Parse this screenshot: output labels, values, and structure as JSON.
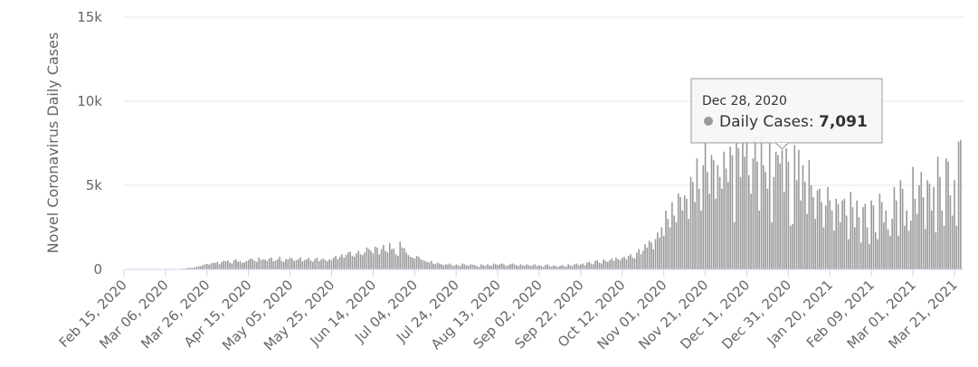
{
  "chart_data": {
    "type": "bar",
    "y_label": "Novel Coronavirus Daily Cases",
    "ylim": [
      0,
      15000
    ],
    "yticks": [
      0,
      {
        "value": 5000,
        "label": "5k"
      },
      {
        "value": 10000,
        "label": "10k"
      },
      {
        "value": 15000,
        "label": "15k"
      }
    ],
    "grid": true,
    "color": "#999999",
    "categories": [
      "Feb 15, 2020",
      null,
      null,
      null,
      null,
      null,
      null,
      null,
      null,
      null,
      null,
      null,
      null,
      null,
      null,
      null,
      null,
      null,
      null,
      null,
      "Mar 06, 2020",
      null,
      null,
      null,
      null,
      null,
      null,
      null,
      null,
      null,
      null,
      null,
      null,
      null,
      null,
      null,
      null,
      null,
      null,
      null,
      "Mar 26, 2020",
      null,
      null,
      null,
      null,
      null,
      null,
      null,
      null,
      null,
      null,
      null,
      null,
      null,
      null,
      null,
      null,
      null,
      null,
      null,
      "Apr 15, 2020",
      null,
      null,
      null,
      null,
      null,
      null,
      null,
      null,
      null,
      null,
      null,
      null,
      null,
      null,
      null,
      null,
      null,
      null,
      null,
      "May 05, 2020",
      null,
      null,
      null,
      null,
      null,
      null,
      null,
      null,
      null,
      null,
      null,
      null,
      null,
      null,
      null,
      null,
      null,
      null,
      null,
      "May 25, 2020",
      null,
      null,
      null,
      null,
      null,
      null,
      null,
      null,
      null,
      null,
      null,
      null,
      null,
      null,
      null,
      null,
      null,
      null,
      null,
      "Jun 14, 2020",
      null,
      null,
      null,
      null,
      null,
      null,
      null,
      null,
      null,
      null,
      null,
      null,
      null,
      null,
      null,
      null,
      null,
      null,
      null,
      "Jul 04, 2020",
      null,
      null,
      null,
      null,
      null,
      null,
      null,
      null,
      null,
      null,
      null,
      null,
      null,
      null,
      null,
      null,
      null,
      null,
      null,
      "Jul 24, 2020",
      null,
      null,
      null,
      null,
      null,
      null,
      null,
      null,
      null,
      null,
      null,
      null,
      null,
      null,
      null,
      null,
      null,
      null,
      null,
      "Aug 13, 2020",
      null,
      null,
      null,
      null,
      null,
      null,
      null,
      null,
      null,
      null,
      null,
      null,
      null,
      null,
      null,
      null,
      null,
      null,
      null,
      "Sep 02, 2020",
      null,
      null,
      null,
      null,
      null,
      null,
      null,
      null,
      null,
      null,
      null,
      null,
      null,
      null,
      null,
      null,
      null,
      null,
      null,
      "Sep 22, 2020",
      null,
      null,
      null,
      null,
      null,
      null,
      null,
      null,
      null,
      null,
      null,
      null,
      null,
      null,
      null,
      null,
      null,
      null,
      null,
      "Oct 12, 2020",
      null,
      null,
      null,
      null,
      null,
      null,
      null,
      null,
      null,
      null,
      null,
      null,
      null,
      null,
      null,
      null,
      null,
      null,
      null,
      "Nov 01, 2020",
      null,
      null,
      null,
      null,
      null,
      null,
      null,
      null,
      null,
      null,
      null,
      null,
      null,
      null,
      null,
      null,
      null,
      null,
      null,
      "Nov 21, 2020",
      null,
      null,
      null,
      null,
      null,
      null,
      null,
      null,
      null,
      null,
      null,
      null,
      null,
      null,
      null,
      null,
      null,
      null,
      null,
      "Dec 11, 2020",
      null,
      null,
      null,
      null,
      null,
      null,
      null,
      null,
      null,
      null,
      null,
      null,
      null,
      null,
      null,
      null,
      null,
      null,
      null,
      "Dec 31, 2020",
      null,
      null,
      null,
      null,
      null,
      null,
      null,
      null,
      null,
      null,
      null,
      null,
      null,
      null,
      null,
      null,
      null,
      null,
      null,
      "Jan 20, 2021",
      null,
      null,
      null,
      null,
      null,
      null,
      null,
      null,
      null,
      null,
      null,
      null,
      null,
      null,
      null,
      null,
      null,
      null,
      null,
      "Feb 09, 2021",
      null,
      null,
      null,
      null,
      null,
      null,
      null,
      null,
      null,
      null,
      null,
      null,
      null,
      null,
      null,
      null,
      null,
      null,
      null,
      "Mar 01, 2021",
      null,
      null,
      null,
      null,
      null,
      null,
      null,
      null,
      null,
      null,
      null,
      null,
      null,
      null,
      null,
      null,
      null,
      null,
      null,
      "Mar 21, 2021",
      null,
      null,
      null
    ],
    "values": [
      0,
      0,
      0,
      0,
      0,
      0,
      0,
      0,
      0,
      0,
      0,
      0,
      0,
      0,
      0,
      0,
      0,
      0,
      0,
      0,
      0,
      0,
      0,
      0,
      0,
      10,
      20,
      30,
      50,
      40,
      60,
      80,
      100,
      90,
      120,
      150,
      200,
      180,
      250,
      300,
      320,
      280,
      350,
      400,
      380,
      450,
      300,
      420,
      500,
      480,
      520,
      400,
      350,
      550,
      600,
      450,
      500,
      380,
      420,
      480,
      550,
      650,
      600,
      500,
      450,
      700,
      550,
      600,
      580,
      500,
      650,
      700,
      480,
      520,
      600,
      750,
      500,
      450,
      620,
      580,
      700,
      650,
      500,
      550,
      600,
      720,
      480,
      550,
      600,
      680,
      520,
      450,
      620,
      700,
      500,
      580,
      650,
      550,
      480,
      600,
      550,
      700,
      800,
      600,
      750,
      900,
      700,
      850,
      1000,
      1050,
      800,
      750,
      950,
      1100,
      900,
      850,
      1000,
      1300,
      1200,
      1100,
      950,
      1350,
      1300,
      900,
      1200,
      1450,
      1100,
      1000,
      1550,
      1200,
      1250,
      900,
      800,
      1650,
      1300,
      1250,
      1000,
      850,
      750,
      700,
      650,
      800,
      750,
      600,
      550,
      500,
      450,
      400,
      500,
      350,
      300,
      400,
      350,
      300,
      250,
      300,
      280,
      350,
      250,
      200,
      300,
      250,
      200,
      350,
      300,
      250,
      200,
      300,
      280,
      250,
      200,
      150,
      300,
      250,
      200,
      300,
      250,
      200,
      350,
      300,
      250,
      300,
      350,
      300,
      200,
      250,
      300,
      350,
      300,
      250,
      200,
      300,
      250,
      200,
      300,
      250,
      200,
      250,
      300,
      200,
      250,
      200,
      150,
      250,
      300,
      200,
      150,
      250,
      200,
      150,
      200,
      250,
      200,
      150,
      300,
      250,
      200,
      300,
      350,
      250,
      300,
      350,
      250,
      400,
      450,
      350,
      300,
      500,
      550,
      400,
      350,
      600,
      500,
      450,
      550,
      650,
      500,
      700,
      600,
      550,
      700,
      750,
      600,
      800,
      900,
      700,
      650,
      1000,
      1200,
      900,
      1100,
      1500,
      1300,
      1700,
      1600,
      1200,
      1800,
      2200,
      1900,
      2500,
      2000,
      3500,
      3000,
      2500,
      4000,
      3200,
      2800,
      4500,
      4300,
      3500,
      4400,
      4200,
      3000,
      5500,
      5200,
      4000,
      6600,
      4800,
      3500,
      6200,
      7600,
      5800,
      4500,
      6800,
      6500,
      4200,
      6200,
      5500,
      4800,
      7000,
      6000,
      5200,
      7300,
      6800,
      2800,
      7500,
      7200,
      5500,
      7700,
      6700,
      7700,
      5600,
      4500,
      6600,
      7800,
      6400,
      3500,
      7900,
      6200,
      5800,
      4800,
      7600,
      2800,
      5500,
      7000,
      6800,
      6300,
      7091,
      4600,
      7200,
      6400,
      2600,
      2700,
      7400,
      5300,
      7100,
      4100,
      6200,
      5200,
      3300,
      6500,
      5000,
      4300,
      3000,
      4700,
      4800,
      4000,
      2500,
      3800,
      4900,
      4100,
      3500,
      2300,
      4200,
      3900,
      2800,
      4100,
      4200,
      3200,
      1800,
      4600,
      3700,
      2500,
      4100,
      3100,
      1600,
      3700,
      3900,
      2500,
      1500,
      4100,
      3800,
      2200,
      1800,
      4500,
      4000,
      2800,
      3500,
      2400,
      2000,
      3000,
      4900,
      4100,
      2000,
      5300,
      4800,
      2600,
      3500,
      2300,
      2900,
      6100,
      4200,
      3300,
      5000,
      5800,
      4300,
      2400,
      5300,
      5100,
      3500,
      4900,
      2200,
      6700,
      5500,
      3500,
      2600,
      6600,
      6400,
      4400,
      3200,
      5300,
      2600,
      7600,
      7700
    ],
    "tooltip": {
      "date": "Dec 28, 2020",
      "label": "Daily Cases:",
      "value": 7091,
      "value_label": "7,091"
    }
  }
}
